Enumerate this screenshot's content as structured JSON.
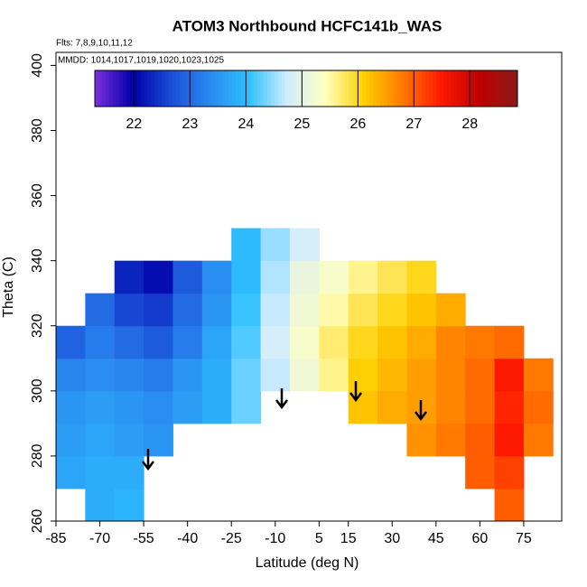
{
  "chart_data": {
    "type": "heatmap",
    "title": "ATOM3 Northbound HCFC141b_WAS",
    "subtitle": "Flts: 7,8,9,10,11,12",
    "annotation": "MMDD: 1014,1017,1019,1020,1023,1025",
    "x_label": "Latitude (deg N)",
    "y_label": "Theta (C)",
    "x": [
      -80,
      -70,
      -60,
      -50,
      -40,
      -30,
      -20,
      -10,
      0,
      10,
      20,
      30,
      40,
      50,
      60,
      70,
      80
    ],
    "y": [
      265,
      275,
      285,
      295,
      305,
      315,
      325,
      335,
      345
    ],
    "z": [
      [
        null,
        23.8,
        23.9,
        null,
        null,
        null,
        null,
        null,
        null,
        null,
        null,
        null,
        null,
        null,
        null,
        27.0,
        null
      ],
      [
        23.7,
        23.8,
        23.8,
        null,
        null,
        null,
        null,
        null,
        null,
        null,
        null,
        null,
        null,
        null,
        27.0,
        27.2,
        null
      ],
      [
        23.6,
        23.7,
        23.6,
        23.5,
        null,
        null,
        null,
        null,
        null,
        null,
        null,
        null,
        26.6,
        26.8,
        27.0,
        27.5,
        26.8
      ],
      [
        23.5,
        23.6,
        23.5,
        23.4,
        23.6,
        23.8,
        24.3,
        null,
        null,
        null,
        26.2,
        26.4,
        26.5,
        26.7,
        26.9,
        27.4,
        26.9
      ],
      [
        23.3,
        23.4,
        23.3,
        23.2,
        23.5,
        23.8,
        24.3,
        24.7,
        25.2,
        25.6,
        26.1,
        26.3,
        26.5,
        26.7,
        26.9,
        27.5,
        26.8
      ],
      [
        22.9,
        23.2,
        23.0,
        22.8,
        23.2,
        23.7,
        24.2,
        24.8,
        25.3,
        25.7,
        26.0,
        26.2,
        26.4,
        26.7,
        26.8,
        26.9,
        null
      ],
      [
        null,
        23.0,
        22.6,
        22.5,
        23.0,
        23.5,
        24.1,
        24.7,
        25.2,
        25.5,
        25.8,
        26.0,
        26.2,
        26.4,
        null,
        null,
        null
      ],
      [
        null,
        null,
        22.3,
        22.1,
        22.8,
        23.4,
        24.0,
        24.6,
        25.1,
        25.3,
        25.6,
        25.8,
        26.0,
        null,
        null,
        null,
        null
      ],
      [
        null,
        null,
        null,
        null,
        null,
        null,
        24.0,
        24.5,
        24.8,
        null,
        null,
        null,
        null,
        null,
        null,
        null,
        null
      ]
    ],
    "xlim": [
      -85,
      88
    ],
    "ylim": [
      260,
      404
    ],
    "xticks": [
      -85,
      -70,
      -55,
      -40,
      -25,
      -10,
      5,
      15,
      30,
      45,
      60,
      75
    ],
    "yticks": [
      260,
      280,
      300,
      320,
      340,
      360,
      380,
      400
    ],
    "clim": [
      21.3,
      28.85
    ],
    "cticks": [
      22,
      23,
      24,
      25,
      26,
      27,
      28
    ],
    "colormap": [
      "#7b2fe0",
      "#0000a8",
      "#1a4fd8",
      "#2a8af0",
      "#2cc0ff",
      "#d0ecff",
      "#ffffc0",
      "#ffd000",
      "#ff7a00",
      "#ff1a00",
      "#c00000",
      "#8b1a1a"
    ]
  }
}
